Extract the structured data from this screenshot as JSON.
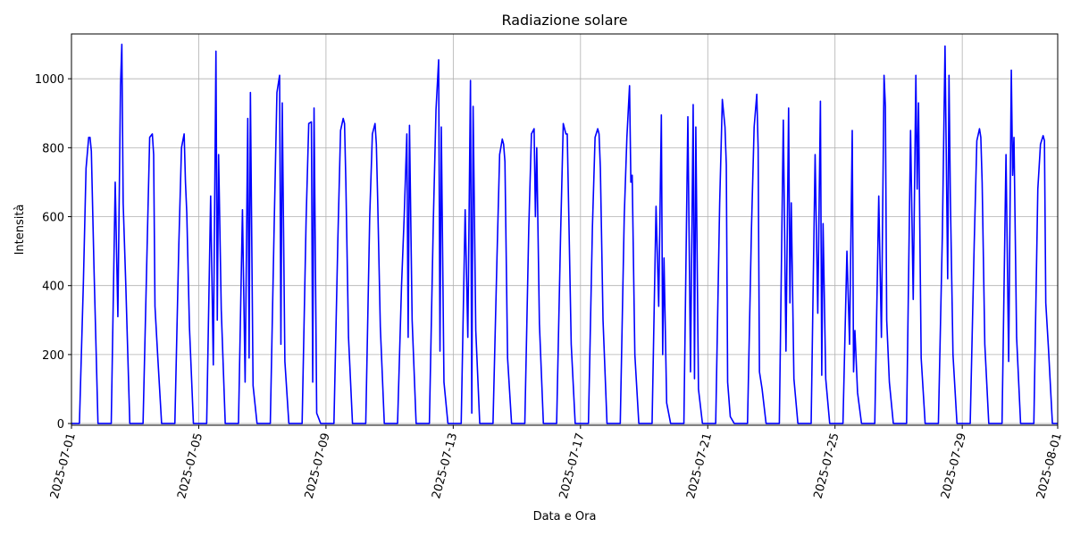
{
  "chart_data": {
    "type": "line",
    "title": "Radiazione solare",
    "x_label": "Data e Ora",
    "y_label": "Intensità",
    "xlim": [
      "2025-07-01 00:00",
      "2025-08-01 00:00"
    ],
    "xticks": [
      "2025-07-01",
      "2025-07-05",
      "2025-07-09",
      "2025-07-13",
      "2025-07-17",
      "2025-07-21",
      "2025-07-25",
      "2025-07-29",
      "2025-08-01"
    ],
    "ylim": [
      -5,
      1130
    ],
    "yticks": [
      0,
      200,
      400,
      600,
      800,
      1000
    ],
    "grid": true,
    "x": [
      "2025-07-01 00:00",
      "2025-07-01 06:00",
      "2025-07-01 09:00",
      "2025-07-01 11:00",
      "2025-07-01 13:00",
      "2025-07-01 14:00",
      "2025-07-01 15:00",
      "2025-07-01 17:00",
      "2025-07-01 20:00",
      "2025-07-02 06:00",
      "2025-07-02 09:00",
      "2025-07-02 11:00",
      "2025-07-02 13:00",
      "2025-07-02 14:00",
      "2025-07-02 15:00",
      "2025-07-02 17:00",
      "2025-07-02 20:00",
      "2025-07-03 06:00",
      "2025-07-03 09:00",
      "2025-07-03 11:00",
      "2025-07-03 13:00",
      "2025-07-03 14:00",
      "2025-07-03 15:00",
      "2025-07-03 17:00",
      "2025-07-03 20:00",
      "2025-07-04 06:00",
      "2025-07-04 09:00",
      "2025-07-04 11:00",
      "2025-07-04 13:00",
      "2025-07-04 14:00",
      "2025-07-04 15:00",
      "2025-07-04 17:00",
      "2025-07-04 20:00",
      "2025-07-05 06:00",
      "2025-07-05 09:00",
      "2025-07-05 11:00",
      "2025-07-05 13:00",
      "2025-07-05 14:00",
      "2025-07-05 15:00",
      "2025-07-05 17:00",
      "2025-07-05 20:00",
      "2025-07-06 06:00",
      "2025-07-06 09:00",
      "2025-07-06 11:00",
      "2025-07-06 13:00",
      "2025-07-06 14:00",
      "2025-07-06 15:00",
      "2025-07-06 17:00",
      "2025-07-06 20:00",
      "2025-07-07 06:00",
      "2025-07-07 09:00",
      "2025-07-07 11:00",
      "2025-07-07 13:00",
      "2025-07-07 14:00",
      "2025-07-07 15:00",
      "2025-07-07 17:00",
      "2025-07-07 20:00",
      "2025-07-08 06:00",
      "2025-07-08 09:00",
      "2025-07-08 11:00",
      "2025-07-08 13:00",
      "2025-07-08 14:00",
      "2025-07-08 15:00",
      "2025-07-08 17:00",
      "2025-07-08 20:00",
      "2025-07-09 06:00",
      "2025-07-09 09:00",
      "2025-07-09 11:00",
      "2025-07-09 13:00",
      "2025-07-09 14:00",
      "2025-07-09 15:00",
      "2025-07-09 17:00",
      "2025-07-09 20:00",
      "2025-07-10 06:00",
      "2025-07-10 09:00",
      "2025-07-10 11:00",
      "2025-07-10 13:00",
      "2025-07-10 14:00",
      "2025-07-10 15:00",
      "2025-07-10 17:00",
      "2025-07-10 20:00",
      "2025-07-11 06:00",
      "2025-07-11 09:00",
      "2025-07-11 11:00",
      "2025-07-11 13:00",
      "2025-07-11 14:00",
      "2025-07-11 15:00",
      "2025-07-11 17:00",
      "2025-07-11 20:00",
      "2025-07-12 06:00",
      "2025-07-12 09:00",
      "2025-07-12 11:00",
      "2025-07-12 13:00",
      "2025-07-12 14:00",
      "2025-07-12 15:00",
      "2025-07-12 17:00",
      "2025-07-12 20:00",
      "2025-07-13 06:00",
      "2025-07-13 09:00",
      "2025-07-13 11:00",
      "2025-07-13 13:00",
      "2025-07-13 14:00",
      "2025-07-13 15:00",
      "2025-07-13 17:00",
      "2025-07-13 20:00",
      "2025-07-14 06:00",
      "2025-07-14 09:00",
      "2025-07-14 11:00",
      "2025-07-14 13:00",
      "2025-07-14 14:00",
      "2025-07-14 15:00",
      "2025-07-14 17:00",
      "2025-07-14 20:00",
      "2025-07-15 06:00",
      "2025-07-15 09:00",
      "2025-07-15 11:00",
      "2025-07-15 13:00",
      "2025-07-15 14:00",
      "2025-07-15 15:00",
      "2025-07-15 17:00",
      "2025-07-15 20:00",
      "2025-07-16 06:00",
      "2025-07-16 09:00",
      "2025-07-16 11:00",
      "2025-07-16 13:00",
      "2025-07-16 14:00",
      "2025-07-16 15:00",
      "2025-07-16 17:00",
      "2025-07-16 20:00",
      "2025-07-17 06:00",
      "2025-07-17 09:00",
      "2025-07-17 11:00",
      "2025-07-17 13:00",
      "2025-07-17 14:00",
      "2025-07-17 15:00",
      "2025-07-17 17:00",
      "2025-07-17 20:00",
      "2025-07-18 06:00",
      "2025-07-18 09:00",
      "2025-07-18 11:00",
      "2025-07-18 13:00",
      "2025-07-18 14:00",
      "2025-07-18 15:00",
      "2025-07-18 17:00",
      "2025-07-18 20:00",
      "2025-07-19 06:00",
      "2025-07-19 09:00",
      "2025-07-19 11:00",
      "2025-07-19 13:00",
      "2025-07-19 14:00",
      "2025-07-19 15:00",
      "2025-07-19 17:00",
      "2025-07-19 20:00",
      "2025-07-20 06:00",
      "2025-07-20 09:00",
      "2025-07-20 11:00",
      "2025-07-20 13:00",
      "2025-07-20 14:00",
      "2025-07-20 15:00",
      "2025-07-20 17:00",
      "2025-07-20 20:00",
      "2025-07-21 06:00",
      "2025-07-21 09:00",
      "2025-07-21 11:00",
      "2025-07-21 13:00",
      "2025-07-21 14:00",
      "2025-07-21 15:00",
      "2025-07-21 17:00",
      "2025-07-21 20:00",
      "2025-07-22 06:00",
      "2025-07-22 09:00",
      "2025-07-22 11:00",
      "2025-07-22 13:00",
      "2025-07-22 14:00",
      "2025-07-22 15:00",
      "2025-07-22 17:00",
      "2025-07-22 20:00",
      "2025-07-23 06:00",
      "2025-07-23 09:00",
      "2025-07-23 11:00",
      "2025-07-23 13:00",
      "2025-07-23 14:00",
      "2025-07-23 15:00",
      "2025-07-23 17:00",
      "2025-07-23 20:00",
      "2025-07-24 06:00",
      "2025-07-24 09:00",
      "2025-07-24 11:00",
      "2025-07-24 13:00",
      "2025-07-24 14:00",
      "2025-07-24 15:00",
      "2025-07-24 17:00",
      "2025-07-24 20:00",
      "2025-07-25 06:00",
      "2025-07-25 09:00",
      "2025-07-25 11:00",
      "2025-07-25 13:00",
      "2025-07-25 14:00",
      "2025-07-25 15:00",
      "2025-07-25 17:00",
      "2025-07-25 20:00",
      "2025-07-26 06:00",
      "2025-07-26 09:00",
      "2025-07-26 11:00",
      "2025-07-26 13:00",
      "2025-07-26 14:00",
      "2025-07-26 15:00",
      "2025-07-26 17:00",
      "2025-07-26 20:00",
      "2025-07-27 06:00",
      "2025-07-27 09:00",
      "2025-07-27 11:00",
      "2025-07-27 13:00",
      "2025-07-27 14:00",
      "2025-07-27 15:00",
      "2025-07-27 17:00",
      "2025-07-27 20:00",
      "2025-07-28 06:00",
      "2025-07-28 09:00",
      "2025-07-28 11:00",
      "2025-07-28 13:00",
      "2025-07-28 14:00",
      "2025-07-28 15:00",
      "2025-07-28 17:00",
      "2025-07-28 20:00",
      "2025-07-29 06:00",
      "2025-07-29 09:00",
      "2025-07-29 11:00",
      "2025-07-29 13:00",
      "2025-07-29 14:00",
      "2025-07-29 15:00",
      "2025-07-29 17:00",
      "2025-07-29 20:00",
      "2025-07-30 06:00",
      "2025-07-30 09:00",
      "2025-07-30 11:00",
      "2025-07-30 13:00",
      "2025-07-30 14:00",
      "2025-07-30 15:00",
      "2025-07-30 17:00",
      "2025-07-30 20:00",
      "2025-07-31 06:00",
      "2025-07-31 09:00",
      "2025-07-31 11:00",
      "2025-07-31 13:00",
      "2025-07-31 14:00",
      "2025-07-31 15:00",
      "2025-07-31 17:00",
      "2025-07-31 20:00",
      "2025-08-01 00:00"
    ],
    "series": [
      {
        "color": "#0000ff",
        "values": [
          0,
          0,
          410,
          740,
          830,
          830,
          790,
          450,
          0,
          0,
          700,
          310,
          980,
          1100,
          640,
          400,
          0,
          0,
          500,
          830,
          840,
          780,
          340,
          200,
          0,
          0,
          520,
          800,
          840,
          700,
          610,
          280,
          0,
          0,
          660,
          170,
          1080,
          300,
          780,
          330,
          0,
          0,
          620,
          120,
          885,
          190,
          960,
          110,
          0,
          0,
          590,
          960,
          1010,
          230,
          930,
          180,
          0,
          0,
          590,
          870,
          875,
          120,
          915,
          30,
          0,
          0,
          540,
          850,
          885,
          870,
          700,
          250,
          0,
          0,
          600,
          840,
          870,
          810,
          650,
          280,
          0,
          0,
          400,
          600,
          840,
          250,
          865,
          300,
          0,
          0,
          590,
          910,
          1055,
          210,
          860,
          120,
          0,
          0,
          620,
          250,
          995,
          30,
          920,
          270,
          0,
          0,
          480,
          780,
          825,
          810,
          760,
          190,
          0,
          0,
          570,
          840,
          855,
          600,
          800,
          290,
          0,
          0,
          550,
          870,
          840,
          840,
          640,
          230,
          0,
          0,
          570,
          830,
          855,
          840,
          740,
          300,
          0,
          0,
          600,
          830,
          980,
          700,
          720,
          200,
          0,
          0,
          630,
          340,
          895,
          200,
          480,
          60,
          0,
          0,
          890,
          150,
          925,
          130,
          860,
          100,
          0,
          0,
          640,
          940,
          860,
          750,
          120,
          20,
          0,
          0,
          570,
          860,
          955,
          800,
          150,
          100,
          0,
          0,
          880,
          210,
          915,
          350,
          640,
          130,
          0,
          0,
          780,
          320,
          935,
          140,
          580,
          130,
          0,
          0,
          500,
          230,
          850,
          150,
          270,
          90,
          0,
          0,
          660,
          250,
          1010,
          920,
          300,
          120,
          0,
          0,
          850,
          360,
          1010,
          680,
          930,
          190,
          0,
          0,
          550,
          1095,
          420,
          1010,
          660,
          200,
          0,
          0,
          520,
          820,
          855,
          830,
          700,
          230,
          0,
          0,
          780,
          180,
          1025,
          720,
          830,
          250,
          0,
          0,
          680,
          810,
          835,
          820,
          350,
          220,
          0,
          0
        ]
      }
    ]
  }
}
